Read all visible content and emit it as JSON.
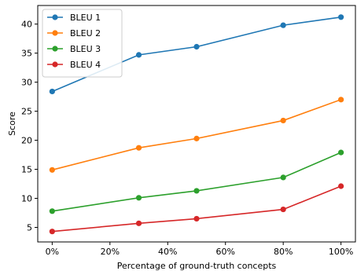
{
  "chart_data": {
    "type": "line",
    "title": "",
    "xlabel": "Percentage of ground-truth concepts",
    "ylabel": "Score",
    "x": [
      0,
      30,
      50,
      80,
      100
    ],
    "x_tick_values": [
      0,
      20,
      40,
      60,
      80,
      100
    ],
    "x_tick_labels": [
      "0%",
      "20%",
      "40%",
      "60%",
      "80%",
      "100%"
    ],
    "y_tick_values": [
      5,
      10,
      15,
      20,
      25,
      30,
      35,
      40
    ],
    "y_tick_labels": [
      "5",
      "10",
      "15",
      "20",
      "25",
      "30",
      "35",
      "40"
    ],
    "xlim": [
      -5,
      105
    ],
    "ylim": [
      2.5,
      43.2
    ],
    "grid": false,
    "legend_position": "top-left",
    "series": [
      {
        "name": "BLEU 1",
        "color": "#1f77b4",
        "values": [
          28.4,
          34.7,
          36.1,
          39.8,
          41.2
        ]
      },
      {
        "name": "BLEU 2",
        "color": "#ff7f0e",
        "values": [
          14.9,
          18.7,
          20.3,
          23.4,
          27.0
        ]
      },
      {
        "name": "BLEU 3",
        "color": "#2ca02c",
        "values": [
          7.8,
          10.1,
          11.3,
          13.6,
          17.9
        ]
      },
      {
        "name": "BLEU 4",
        "color": "#d62728",
        "values": [
          4.3,
          5.7,
          6.5,
          8.1,
          12.1
        ]
      }
    ]
  }
}
